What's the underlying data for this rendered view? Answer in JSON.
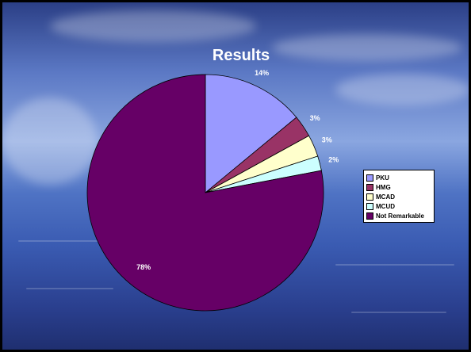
{
  "chart_data": {
    "type": "pie",
    "title": "Results",
    "categories": [
      "PKU",
      "HMG",
      "MCAD",
      "MCUD",
      "Not Remarkable"
    ],
    "values": [
      14,
      3,
      3,
      2,
      78
    ],
    "value_labels": [
      "14%",
      "3%",
      "3%",
      "2%",
      "78%"
    ],
    "colors": [
      "#9999ff",
      "#993366",
      "#ffffcc",
      "#ccffff",
      "#660066"
    ],
    "legend_position": "right"
  }
}
